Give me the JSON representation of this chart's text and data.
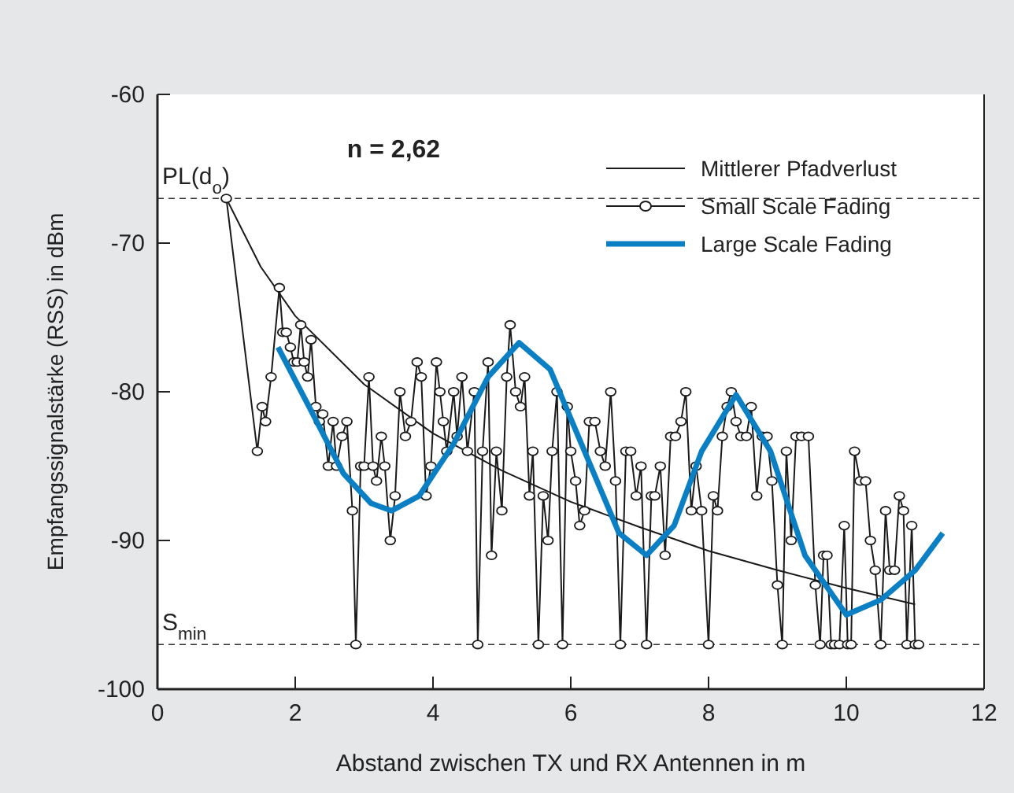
{
  "chart_data": {
    "type": "line",
    "xlabel": "Abstand zwischen TX und RX Antennen in m",
    "ylabel": "Empfangssignalstärke (RSS) in dBm",
    "xlim": [
      0,
      12
    ],
    "xticks": [
      0,
      2,
      4,
      6,
      8,
      10,
      12
    ],
    "ylim": [
      -100,
      -60
    ],
    "yticks": [
      -100,
      -90,
      -80,
      -70,
      -60
    ],
    "grid": false,
    "legend": "top right",
    "annotations": [
      "n = 2,62"
    ],
    "ref_lines": [
      {
        "axis": "y",
        "value": -67,
        "label": "PL(d$_{o}$)",
        "line_style": "dashed",
        "color": "#333333"
      },
      {
        "axis": "y",
        "value": -97,
        "label": "S$_{min}$",
        "line_style": "dashed",
        "color": "#333333"
      }
    ],
    "series": [
      {
        "name": "Mittlerer Pfadverlust",
        "color": "#1a1a1a",
        "marker": "none",
        "line_style": "solid",
        "x": [
          1,
          1.5,
          2,
          3,
          4,
          5,
          6,
          7,
          8,
          9,
          10,
          11
        ],
        "values": [
          -67,
          -71.6,
          -74.9,
          -79.5,
          -82.8,
          -85.3,
          -87.4,
          -89.1,
          -90.7,
          -92,
          -93.2,
          -94.3
        ]
      },
      {
        "name": "Small Scale Fading",
        "color": "#1a1a1a",
        "marker": "circle",
        "line_style": "solid",
        "x": [
          1,
          1.45,
          1.52,
          1.57,
          1.65,
          1.77,
          1.82,
          1.87,
          1.93,
          1.98,
          2.03,
          2.08,
          2.13,
          2.18,
          2.23,
          2.3,
          2.35,
          2.4,
          2.48,
          2.55,
          2.6,
          2.68,
          2.75,
          2.83,
          2.88,
          2.95,
          3,
          3.07,
          3.13,
          3.18,
          3.25,
          3.3,
          3.38,
          3.45,
          3.52,
          3.6,
          3.68,
          3.77,
          3.83,
          3.9,
          3.97,
          4.05,
          4.1,
          4.15,
          4.2,
          4.3,
          4.35,
          4.42,
          4.5,
          4.6,
          4.65,
          4.72,
          4.8,
          4.85,
          4.92,
          5,
          5.07,
          5.12,
          5.2,
          5.27,
          5.33,
          5.4,
          5.45,
          5.53,
          5.6,
          5.67,
          5.73,
          5.8,
          5.88,
          5.95,
          6,
          6.07,
          6.13,
          6.2,
          6.27,
          6.35,
          6.43,
          6.5,
          6.58,
          6.65,
          6.72,
          6.8,
          6.87,
          6.95,
          7.02,
          7.1,
          7.17,
          7.22,
          7.3,
          7.37,
          7.45,
          7.52,
          7.6,
          7.67,
          7.75,
          7.82,
          7.9,
          8,
          8.07,
          8.13,
          8.2,
          8.27,
          8.33,
          8.4,
          8.47,
          8.55,
          8.62,
          8.7,
          8.78,
          8.85,
          8.92,
          9,
          9.07,
          9.13,
          9.2,
          9.27,
          9.35,
          9.45,
          9.55,
          9.62,
          9.67,
          9.72,
          9.78,
          9.83,
          9.9,
          9.97,
          10.02,
          10.07,
          10.12,
          10.2,
          10.28,
          10.35,
          10.42,
          10.5,
          10.57,
          10.63,
          10.7,
          10.77,
          10.83,
          10.88,
          10.95,
          11,
          11.05
        ],
        "values": [
          -67,
          -84,
          -81,
          -82,
          -79,
          -73,
          -76,
          -76,
          -77,
          -78,
          -78,
          -75.5,
          -78,
          -79,
          -76.5,
          -81,
          -82,
          -81.5,
          -85,
          -82,
          -85,
          -83,
          -82,
          -88,
          -97,
          -85,
          -85,
          -79,
          -85,
          -86,
          -83,
          -85,
          -90,
          -87,
          -80,
          -83,
          -82,
          -78,
          -79,
          -87,
          -85,
          -78,
          -80,
          -82,
          -84,
          -80,
          -83,
          -79,
          -84,
          -80,
          -97,
          -84,
          -78,
          -91,
          -84,
          -88,
          -79,
          -75.5,
          -80,
          -81,
          -79,
          -87,
          -84,
          -97,
          -87,
          -90,
          -84,
          -80,
          -97,
          -81,
          -84,
          -86,
          -89,
          -88,
          -82,
          -82,
          -84,
          -85,
          -80,
          -86,
          -97,
          -84,
          -84,
          -87,
          -85,
          -97,
          -87,
          -87,
          -85,
          -91,
          -83,
          -83,
          -82,
          -80,
          -88,
          -85,
          -88,
          -97,
          -87,
          -88,
          -83,
          -81,
          -80,
          -82,
          -83,
          -83,
          -81,
          -87,
          -83,
          -83,
          -86,
          -93,
          -97,
          -84,
          -90,
          -83,
          -83,
          -83,
          -93,
          -97,
          -91,
          -91,
          -97,
          -97,
          -97,
          -89,
          -97,
          -97,
          -84,
          -86,
          -86,
          -90,
          -92,
          -97,
          -88,
          -92,
          -92,
          -87,
          -88,
          -97,
          -89,
          -97,
          -97
        ]
      },
      {
        "name": "Large Scale Fading",
        "color": "#0a7fc4",
        "marker": "none",
        "line_style": "solid",
        "x": [
          1.75,
          2.2,
          2.7,
          3.1,
          3.4,
          3.8,
          4.3,
          4.8,
          5.25,
          5.7,
          6.2,
          6.7,
          7.1,
          7.5,
          7.9,
          8.4,
          8.9,
          9.4,
          10,
          10.5,
          11,
          11.4
        ],
        "values": [
          -77,
          -81,
          -85.5,
          -87.5,
          -88,
          -87,
          -83.5,
          -79,
          -76.7,
          -78.5,
          -84,
          -89.5,
          -91,
          -89,
          -84,
          -80.2,
          -84,
          -91,
          -95,
          -94,
          -92,
          -89.5
        ]
      }
    ]
  }
}
